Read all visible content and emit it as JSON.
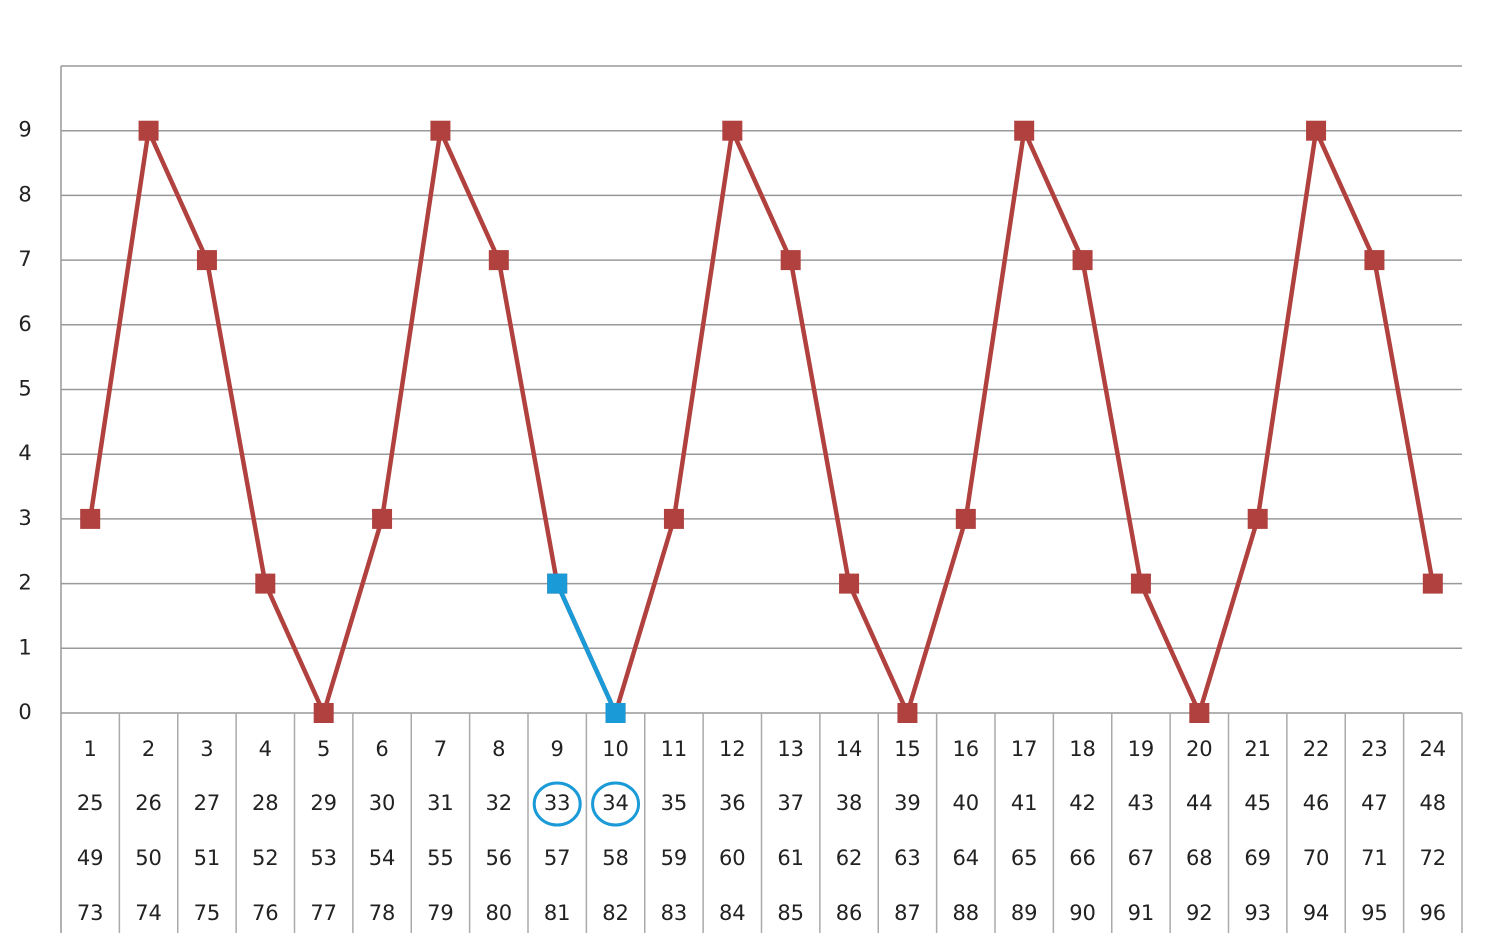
{
  "chart_data": {
    "type": "line",
    "categories": [
      [
        1,
        25,
        49,
        73
      ],
      [
        2,
        26,
        50,
        74
      ],
      [
        3,
        27,
        51,
        75
      ],
      [
        4,
        28,
        52,
        76
      ],
      [
        5,
        29,
        53,
        77
      ],
      [
        6,
        30,
        54,
        78
      ],
      [
        7,
        31,
        55,
        79
      ],
      [
        8,
        32,
        56,
        80
      ],
      [
        9,
        33,
        57,
        81
      ],
      [
        10,
        34,
        58,
        82
      ],
      [
        11,
        35,
        59,
        83
      ],
      [
        12,
        36,
        60,
        84
      ],
      [
        13,
        37,
        61,
        85
      ],
      [
        14,
        38,
        62,
        86
      ],
      [
        15,
        39,
        63,
        87
      ],
      [
        16,
        40,
        64,
        88
      ],
      [
        17,
        41,
        65,
        89
      ],
      [
        18,
        42,
        66,
        90
      ],
      [
        19,
        43,
        67,
        91
      ],
      [
        20,
        44,
        68,
        92
      ],
      [
        21,
        45,
        69,
        93
      ],
      [
        22,
        46,
        70,
        94
      ],
      [
        23,
        47,
        71,
        95
      ],
      [
        24,
        48,
        72,
        96
      ]
    ],
    "series": [
      {
        "color": "#b0413e",
        "values": [
          3,
          9,
          7,
          2,
          0,
          3,
          9,
          7,
          2,
          0,
          3,
          9,
          7,
          2,
          0,
          3,
          9,
          7,
          2,
          0,
          3,
          9,
          7,
          2
        ]
      },
      {
        "color": "#1a9bd7",
        "values": [
          null,
          null,
          null,
          null,
          null,
          null,
          null,
          null,
          2,
          0,
          null,
          null,
          null,
          null,
          null,
          null,
          null,
          null,
          null,
          null,
          null,
          null,
          null,
          null
        ],
        "circled": [
          33,
          34
        ]
      }
    ],
    "ylim": [
      0,
      10
    ],
    "yticks": [
      0,
      1,
      2,
      3,
      4,
      5,
      6,
      7,
      8,
      9
    ],
    "grid": true
  }
}
